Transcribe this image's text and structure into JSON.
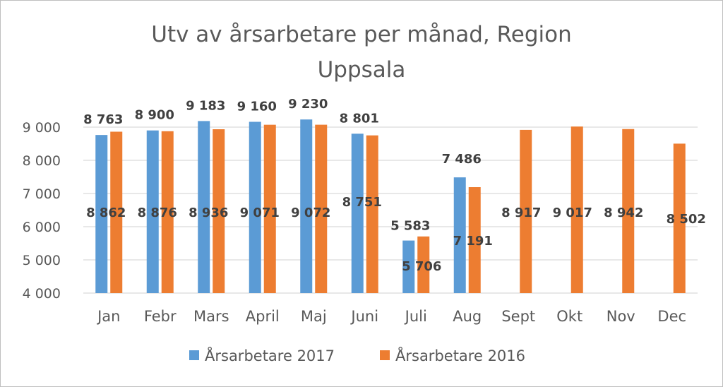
{
  "chart_data": {
    "type": "bar",
    "title_lines": [
      "Utv av årsarbetare per månad, Region",
      "Uppsala"
    ],
    "categories": [
      "Jan",
      "Febr",
      "Mars",
      "April",
      "Maj",
      "Juni",
      "Juli",
      "Aug",
      "Sept",
      "Okt",
      "Nov",
      "Dec"
    ],
    "series": [
      {
        "name": "Årsarbetare 2017",
        "color": "#5b9bd5",
        "values": [
          8763,
          8900,
          9183,
          9160,
          9230,
          8801,
          5583,
          7486,
          null,
          null,
          null,
          null
        ],
        "labels": [
          "8 763",
          "8 900",
          "9 183",
          "9 160",
          "9 230",
          "8 801",
          "5 583",
          "7 486",
          null,
          null,
          null,
          null
        ]
      },
      {
        "name": "Årsarbetare 2016",
        "color": "#ed7d31",
        "values": [
          8862,
          8876,
          8936,
          9071,
          9072,
          8751,
          5706,
          7191,
          8917,
          9017,
          8942,
          8502
        ],
        "labels": [
          "8 862",
          "8 876",
          "8 936",
          "9 071",
          "9 072",
          "8 751",
          "5 706",
          "7 191",
          "8 917",
          "9 017",
          "8 942",
          "8 502"
        ]
      }
    ],
    "ylim": [
      4000,
      9000
    ],
    "yticks": [
      4000,
      5000,
      6000,
      7000,
      8000,
      9000
    ],
    "ytick_labels": [
      "4 000",
      "5 000",
      "6 000",
      "7 000",
      "8 000",
      "9 000"
    ],
    "xlabel": "",
    "ylabel": "",
    "grid": true,
    "legend_position": "bottom",
    "colors": {
      "grid": "#d9d9d9",
      "text": "#595959",
      "label": "#404040"
    }
  }
}
